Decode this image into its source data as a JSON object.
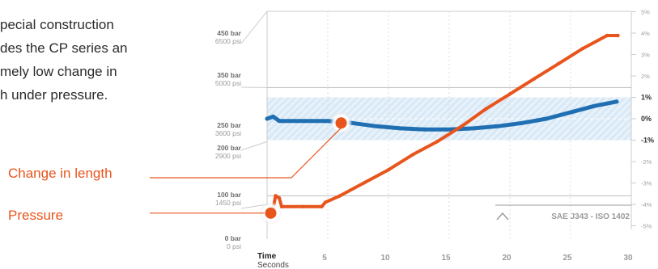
{
  "intro": {
    "lines": [
      "pecial construction",
      "des the CP series an",
      "mely low change in",
      "h under pressure."
    ]
  },
  "callouts": {
    "length_label": "Change in length",
    "pressure_label": "Pressure"
  },
  "standard_label": "SAE J343 - ISO 1402",
  "colors": {
    "pressure": "#e8551c",
    "length": "#1f6fb2",
    "band": "#d6e8f6",
    "grid": "#cccccc"
  },
  "chart_data": {
    "type": "line",
    "x_axis": {
      "title": "Time",
      "subtitle": "Seconds",
      "ticks": [
        "5",
        "10",
        "15",
        "20",
        "25",
        "30"
      ],
      "range": [
        0,
        30
      ]
    },
    "left_axis": {
      "ticks": [
        {
          "bar": "450 bar",
          "psi": "6500 psi",
          "value": 450
        },
        {
          "bar": "350 bar",
          "psi": "5000 psi",
          "value": 350
        },
        {
          "bar": "250 bar",
          "psi": "3600 psi",
          "value": 250
        },
        {
          "bar": "200 bar",
          "psi": "2900 psi",
          "value": 200
        },
        {
          "bar": "100 bar",
          "psi": "1450 psi",
          "value": 100
        },
        {
          "bar": "0 bar",
          "psi": "0 psi",
          "value": 0
        }
      ]
    },
    "right_axis": {
      "ticks": [
        {
          "label": "5%",
          "value": 5,
          "bold": false
        },
        {
          "label": "4%",
          "value": 4,
          "bold": false
        },
        {
          "label": "3%",
          "value": 3,
          "bold": false
        },
        {
          "label": "2%",
          "value": 2,
          "bold": false
        },
        {
          "label": "1%",
          "value": 1,
          "bold": true
        },
        {
          "label": "0%",
          "value": 0,
          "bold": true
        },
        {
          "label": "-1%",
          "value": -1,
          "bold": true
        },
        {
          "label": "-2%",
          "value": -2,
          "bold": false
        },
        {
          "label": "-3%",
          "value": -3,
          "bold": false
        },
        {
          "label": "-4%",
          "value": -4,
          "bold": false
        },
        {
          "label": "-5%",
          "value": -5,
          "bold": false
        }
      ],
      "tolerance_band": [
        -1,
        1
      ]
    },
    "series": [
      {
        "name": "Pressure",
        "axis": "left",
        "points": [
          [
            0.5,
            70
          ],
          [
            0.7,
            100
          ],
          [
            1.0,
            95
          ],
          [
            1.2,
            75
          ],
          [
            3,
            75
          ],
          [
            4.5,
            75
          ],
          [
            4.8,
            85
          ],
          [
            6,
            100
          ],
          [
            8,
            130
          ],
          [
            10,
            160
          ],
          [
            12,
            195
          ],
          [
            14,
            225
          ],
          [
            16,
            260
          ],
          [
            18,
            300
          ],
          [
            20,
            335
          ],
          [
            22,
            370
          ],
          [
            24,
            405
          ],
          [
            26,
            440
          ],
          [
            28,
            470
          ],
          [
            28.9,
            470
          ]
        ]
      },
      {
        "name": "Change in length",
        "axis": "right",
        "points": [
          [
            0,
            0
          ],
          [
            0.5,
            0.1
          ],
          [
            1,
            -0.1
          ],
          [
            3,
            -0.1
          ],
          [
            5,
            -0.1
          ],
          [
            7,
            -0.2
          ],
          [
            9,
            -0.35
          ],
          [
            11,
            -0.45
          ],
          [
            13,
            -0.5
          ],
          [
            15,
            -0.5
          ],
          [
            17,
            -0.45
          ],
          [
            19,
            -0.35
          ],
          [
            21,
            -0.2
          ],
          [
            23,
            0
          ],
          [
            25,
            0.3
          ],
          [
            27,
            0.6
          ],
          [
            28.8,
            0.8
          ]
        ]
      }
    ]
  }
}
